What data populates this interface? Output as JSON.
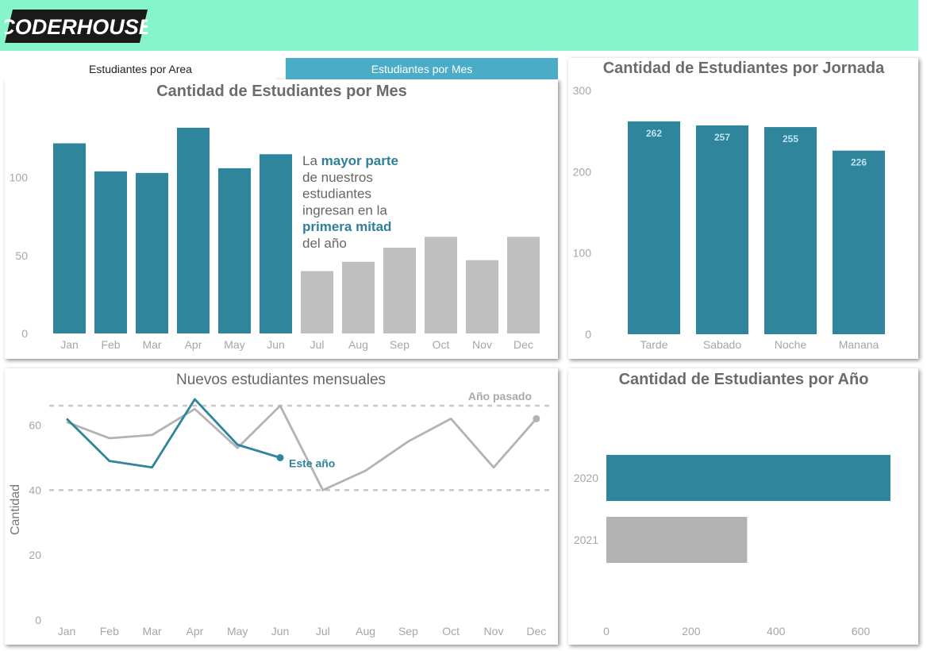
{
  "brand": {
    "logo_text": "CODERHOUSE",
    "header_color": "#87f5cc"
  },
  "colors": {
    "accent": "#2f859c",
    "muted": "#bfbfbf",
    "tab_active": "#4aacc6"
  },
  "tabs": [
    {
      "label": "Estudiantes por Area",
      "active": false
    },
    {
      "label": "Estudiantes por Mes",
      "active": true
    }
  ],
  "annotation": {
    "lines": [
      {
        "parts": [
          {
            "text": "La ",
            "highlight": false
          },
          {
            "text": "mayor parte",
            "highlight": true
          }
        ]
      },
      {
        "parts": [
          {
            "text": "de nuestros",
            "highlight": false
          }
        ]
      },
      {
        "parts": [
          {
            "text": "estudiantes",
            "highlight": false
          }
        ]
      },
      {
        "parts": [
          {
            "text": "ingresan en la",
            "highlight": false
          }
        ]
      },
      {
        "parts": [
          {
            "text": "primera mitad",
            "highlight": true
          }
        ]
      },
      {
        "parts": [
          {
            "text": "del año",
            "highlight": false
          }
        ]
      }
    ]
  },
  "chart_data": [
    {
      "type": "bar",
      "title": "Cantidad de Estudiantes por Mes",
      "categories": [
        "Jan",
        "Feb",
        "Mar",
        "Apr",
        "May",
        "Jun",
        "Jul",
        "Aug",
        "Sep",
        "Oct",
        "Nov",
        "Dec"
      ],
      "values": [
        122,
        104,
        103,
        132,
        106,
        115,
        40,
        46,
        55,
        62,
        47,
        62
      ],
      "highlighted": [
        true,
        true,
        true,
        true,
        true,
        true,
        false,
        false,
        false,
        false,
        false,
        false
      ],
      "yticks": [
        0,
        50,
        100
      ],
      "ylim": [
        0,
        135
      ],
      "grid": false
    },
    {
      "type": "bar",
      "title": "Cantidad de Estudiantes por Jornada",
      "categories": [
        "Tarde",
        "Sabado",
        "Noche",
        "Manana"
      ],
      "values": [
        262,
        257,
        255,
        226
      ],
      "data_labels": [
        "262",
        "257",
        "255",
        "226"
      ],
      "yticks": [
        0,
        100,
        200,
        300
      ],
      "ylim": [
        0,
        300
      ],
      "grid": false
    },
    {
      "type": "line",
      "title": "Nuevos estudiantes mensuales",
      "ylabel": "Cantidad",
      "x": [
        "Jan",
        "Feb",
        "Mar",
        "Apr",
        "May",
        "Jun",
        "Jul",
        "Aug",
        "Sep",
        "Oct",
        "Nov",
        "Dec"
      ],
      "series": [
        {
          "name": "Año pasado",
          "values": [
            61,
            56,
            57,
            65,
            53,
            66,
            40,
            46,
            55,
            62,
            47,
            62
          ]
        },
        {
          "name": "Este año",
          "values": [
            62,
            49,
            47,
            68,
            54,
            50,
            null,
            null,
            null,
            null,
            null,
            null
          ]
        }
      ],
      "reference_lines": [
        40,
        66
      ],
      "yticks": [
        0,
        20,
        40,
        60
      ],
      "ylim": [
        0,
        70
      ],
      "grid": false
    },
    {
      "type": "bar",
      "orientation": "horizontal",
      "title": "Cantidad de Estudiantes por Año",
      "categories": [
        "2020",
        "2021"
      ],
      "values": [
        670,
        332
      ],
      "xticks": [
        0,
        200,
        400,
        600
      ],
      "xlim": [
        0,
        700
      ],
      "grid": false
    }
  ]
}
